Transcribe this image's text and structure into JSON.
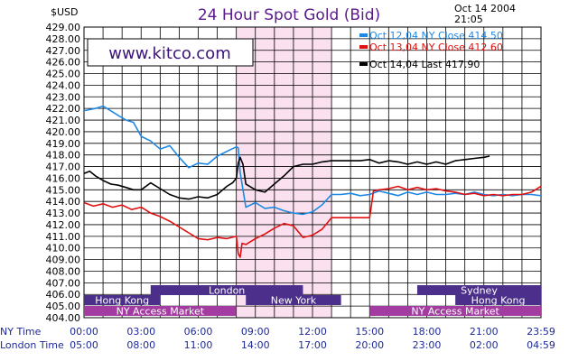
{
  "header": {
    "unit": "$USD",
    "title": "24 Hour Spot Gold (Bid)",
    "date": "Oct 14 2004",
    "time": "21:05"
  },
  "watermark": "www.kitco.com",
  "colors": {
    "oct12": "#1e88e5",
    "oct13": "#e01010",
    "oct14": "#000000",
    "highlight": "#fbe1ef",
    "market_band": "#a23ca0",
    "session_band": "#4b2f8a",
    "grid": "#000000"
  },
  "x_rows": [
    {
      "label": "NY Time",
      "ticks": [
        "00:00",
        "03:00",
        "06:00",
        "09:00",
        "12:00",
        "15:00",
        "18:00",
        "21:00",
        "23:59"
      ]
    },
    {
      "label": "London Time",
      "ticks": [
        "05:00",
        "08:00",
        "11:00",
        "14:00",
        "17:00",
        "20:00",
        "23:00",
        "02:00",
        "04:59"
      ]
    }
  ],
  "market_rows": [
    [
      {
        "label": "London",
        "start": 3.5,
        "end": 11.5
      },
      {
        "label": "Sydney",
        "start": 17.5,
        "end": 24
      }
    ],
    [
      {
        "label": "Hong Kong",
        "start": 0,
        "end": 4
      },
      {
        "label": "New York",
        "start": 8.5,
        "end": 13.5
      },
      {
        "label": "Hong Kong",
        "start": 19.5,
        "end": 24
      }
    ],
    [
      {
        "label": "NY Access Market",
        "start": 0,
        "end": 8
      },
      {
        "label": "NY Access Market",
        "start": 15,
        "end": 24
      }
    ]
  ],
  "chart_data": {
    "type": "line",
    "title": "24 Hour Spot Gold (Bid)",
    "ylabel": "$USD",
    "ylim": [
      404.0,
      429.0
    ],
    "yticks": [
      "404.00",
      "405.00",
      "406.00",
      "407.00",
      "408.00",
      "409.00",
      "410.00",
      "411.00",
      "412.00",
      "413.00",
      "414.00",
      "415.00",
      "416.00",
      "417.00",
      "418.00",
      "419.00",
      "420.00",
      "421.00",
      "422.00",
      "423.00",
      "424.00",
      "425.00",
      "426.00",
      "427.00",
      "428.00",
      "429.00"
    ],
    "xlim_hours": [
      0,
      24
    ],
    "grid": true,
    "highlight_hours": [
      8,
      13
    ],
    "legend_position": "top-right",
    "series": [
      {
        "name": "Oct 12,04 NY Close 414.50",
        "color": "#1e88e5",
        "x": [
          0,
          0.3,
          0.6,
          1.0,
          1.4,
          1.8,
          2.2,
          2.6,
          3.0,
          3.5,
          4.0,
          4.5,
          5.0,
          5.5,
          6.0,
          6.5,
          7.0,
          7.5,
          8.0,
          8.1,
          8.2,
          8.5,
          9.0,
          9.5,
          10.0,
          10.5,
          11.0,
          11.5,
          12.0,
          12.5,
          13.0,
          13.5,
          14.0,
          14.5,
          15.0,
          15.5,
          16.0,
          16.5,
          17.0,
          17.5,
          18.0,
          18.5,
          19.0,
          19.5,
          20.0,
          20.5,
          21.0,
          21.5,
          22.0,
          22.5,
          23.0,
          23.5,
          24.0
        ],
        "y": [
          421.8,
          421.9,
          422.0,
          422.2,
          421.8,
          421.4,
          421.0,
          420.8,
          419.6,
          419.2,
          418.5,
          418.8,
          417.8,
          416.9,
          417.3,
          417.2,
          417.9,
          418.3,
          418.7,
          418.6,
          416.5,
          413.5,
          413.9,
          413.4,
          413.5,
          413.2,
          413.0,
          412.9,
          413.1,
          413.7,
          414.6,
          414.6,
          414.7,
          414.5,
          414.6,
          414.9,
          414.7,
          414.5,
          414.8,
          414.6,
          414.8,
          414.6,
          414.6,
          414.7,
          414.6,
          414.8,
          414.6,
          414.5,
          414.6,
          414.5,
          414.6,
          414.6,
          414.5
        ]
      },
      {
        "name": "Oct 13,04 NY Close 412.60",
        "color": "#e01010",
        "x": [
          0,
          0.5,
          1.0,
          1.5,
          2.0,
          2.5,
          3.0,
          3.5,
          4.0,
          4.5,
          5.0,
          5.5,
          6.0,
          6.5,
          7.0,
          7.5,
          8.0,
          8.1,
          8.2,
          8.3,
          8.5,
          9.0,
          9.5,
          10.0,
          10.5,
          11.0,
          11.5,
          12.0,
          12.5,
          13.0,
          13.5,
          14.0,
          14.5,
          15.0,
          15.2,
          15.5,
          16.0,
          16.5,
          17.0,
          17.5,
          18.0,
          18.5,
          19.0,
          19.5,
          20.0,
          20.5,
          21.0,
          21.5,
          22.0,
          22.5,
          23.0,
          23.5,
          23.9,
          24.0
        ],
        "y": [
          413.9,
          413.6,
          413.8,
          413.5,
          413.7,
          413.3,
          413.5,
          413.0,
          412.7,
          412.3,
          411.8,
          411.3,
          410.8,
          410.7,
          410.9,
          410.8,
          411.0,
          409.5,
          409.2,
          410.4,
          410.3,
          410.8,
          411.2,
          411.7,
          412.1,
          411.9,
          410.9,
          411.1,
          411.6,
          412.6,
          412.6,
          412.6,
          412.6,
          412.6,
          414.9,
          415.0,
          415.1,
          415.3,
          415.0,
          415.2,
          415.0,
          415.1,
          414.9,
          414.8,
          414.6,
          414.7,
          414.5,
          414.6,
          414.5,
          414.6,
          414.6,
          414.8,
          415.2,
          415.3
        ]
      },
      {
        "name": "Oct 14,04 Last 417.90",
        "color": "#000000",
        "x": [
          0,
          0.3,
          0.6,
          1.0,
          1.4,
          1.8,
          2.2,
          2.6,
          3.0,
          3.5,
          4.0,
          4.5,
          5.0,
          5.5,
          6.0,
          6.5,
          7.0,
          7.5,
          7.8,
          8.0,
          8.1,
          8.2,
          8.35,
          8.5,
          9.0,
          9.5,
          10.0,
          10.5,
          11.0,
          11.5,
          12.0,
          12.5,
          13.0,
          13.5,
          14.0,
          14.5,
          15.0,
          15.5,
          16.0,
          16.5,
          17.0,
          17.5,
          18.0,
          18.5,
          19.0,
          19.5,
          20.0,
          20.5,
          21.0,
          21.3
        ],
        "y": [
          416.4,
          416.6,
          416.2,
          415.8,
          415.5,
          415.4,
          415.2,
          415.0,
          415.0,
          415.6,
          415.1,
          414.6,
          414.3,
          414.2,
          414.4,
          414.3,
          414.6,
          415.3,
          415.6,
          416.0,
          417.3,
          417.8,
          417.2,
          415.5,
          415.0,
          414.8,
          415.5,
          416.2,
          417.0,
          417.2,
          417.2,
          417.4,
          417.5,
          417.5,
          417.5,
          417.5,
          417.6,
          417.3,
          417.5,
          417.4,
          417.2,
          417.4,
          417.2,
          417.4,
          417.2,
          417.5,
          417.6,
          417.7,
          417.8,
          417.9
        ]
      }
    ]
  }
}
